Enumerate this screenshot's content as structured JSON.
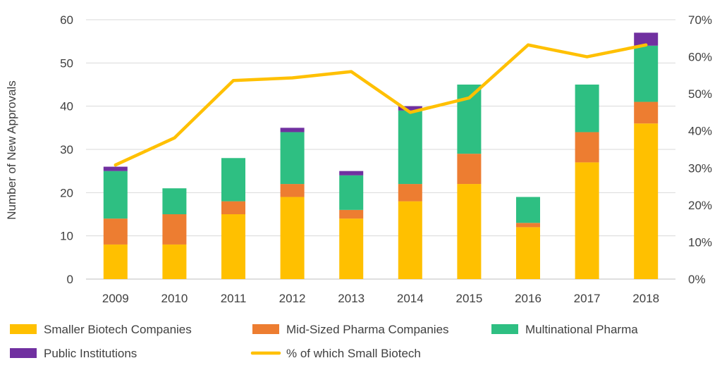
{
  "chart_data": {
    "type": "bar",
    "stacked": true,
    "categories": [
      "2009",
      "2010",
      "2011",
      "2012",
      "2013",
      "2014",
      "2015",
      "2016",
      "2017",
      "2018"
    ],
    "series": [
      {
        "name": "Smaller Biotech Companies",
        "color": "#FFC000",
        "values": [
          8,
          8,
          15,
          19,
          14,
          18,
          22,
          12,
          27,
          36
        ]
      },
      {
        "name": "Mid-Sized Pharma Companies",
        "color": "#ED7D31",
        "values": [
          6,
          7,
          3,
          3,
          2,
          4,
          7,
          1,
          7,
          5
        ]
      },
      {
        "name": "Multinational Pharma",
        "color": "#2EBF82",
        "values": [
          11,
          6,
          10,
          12,
          8,
          17,
          16,
          6,
          11,
          13
        ]
      },
      {
        "name": "Public Institutions",
        "color": "#7030A0",
        "values": [
          1,
          0,
          0,
          1,
          1,
          1,
          0,
          0,
          0,
          3
        ]
      }
    ],
    "line_series": {
      "name": "% of which Small Biotech",
      "color": "#FFC000",
      "axis": "right",
      "values": [
        30.8,
        38.1,
        53.6,
        54.3,
        56.0,
        45.0,
        48.9,
        63.2,
        60.0,
        63.2
      ]
    },
    "title": "",
    "xlabel": "",
    "ylabel": "Number of New Approvals",
    "ylim": [
      0,
      60
    ],
    "yticks": [
      0,
      10,
      20,
      30,
      40,
      50,
      60
    ],
    "ylim_right": [
      0,
      70
    ],
    "yticks_right": [
      "0%",
      "10%",
      "20%",
      "30%",
      "40%",
      "50%",
      "60%",
      "70%"
    ],
    "grid": "horizontal",
    "legend": "bottom"
  }
}
